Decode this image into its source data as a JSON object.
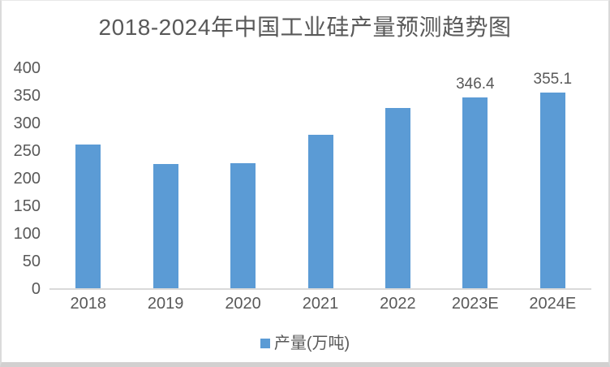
{
  "chart_data": {
    "type": "bar",
    "title": "2018-2024年中国工业硅产量预测趋势图",
    "categories": [
      "2018",
      "2019",
      "2020",
      "2021",
      "2022",
      "2023E",
      "2024E"
    ],
    "values": [
      262,
      226,
      228,
      279,
      328,
      346.4,
      355.1
    ],
    "data_labels": [
      "",
      "",
      "",
      "",
      "",
      "346.4",
      "355.1"
    ],
    "series_name": "产量(万吨)",
    "xlabel": "",
    "ylabel": "",
    "ylim": [
      0,
      400
    ],
    "yticks": [
      0,
      50,
      100,
      150,
      200,
      250,
      300,
      350,
      400
    ],
    "grid": false,
    "legend_position": "bottom",
    "bar_color": "#5B9BD5",
    "text_color": "#595959",
    "axis_line_color": "#D9D9D9"
  }
}
